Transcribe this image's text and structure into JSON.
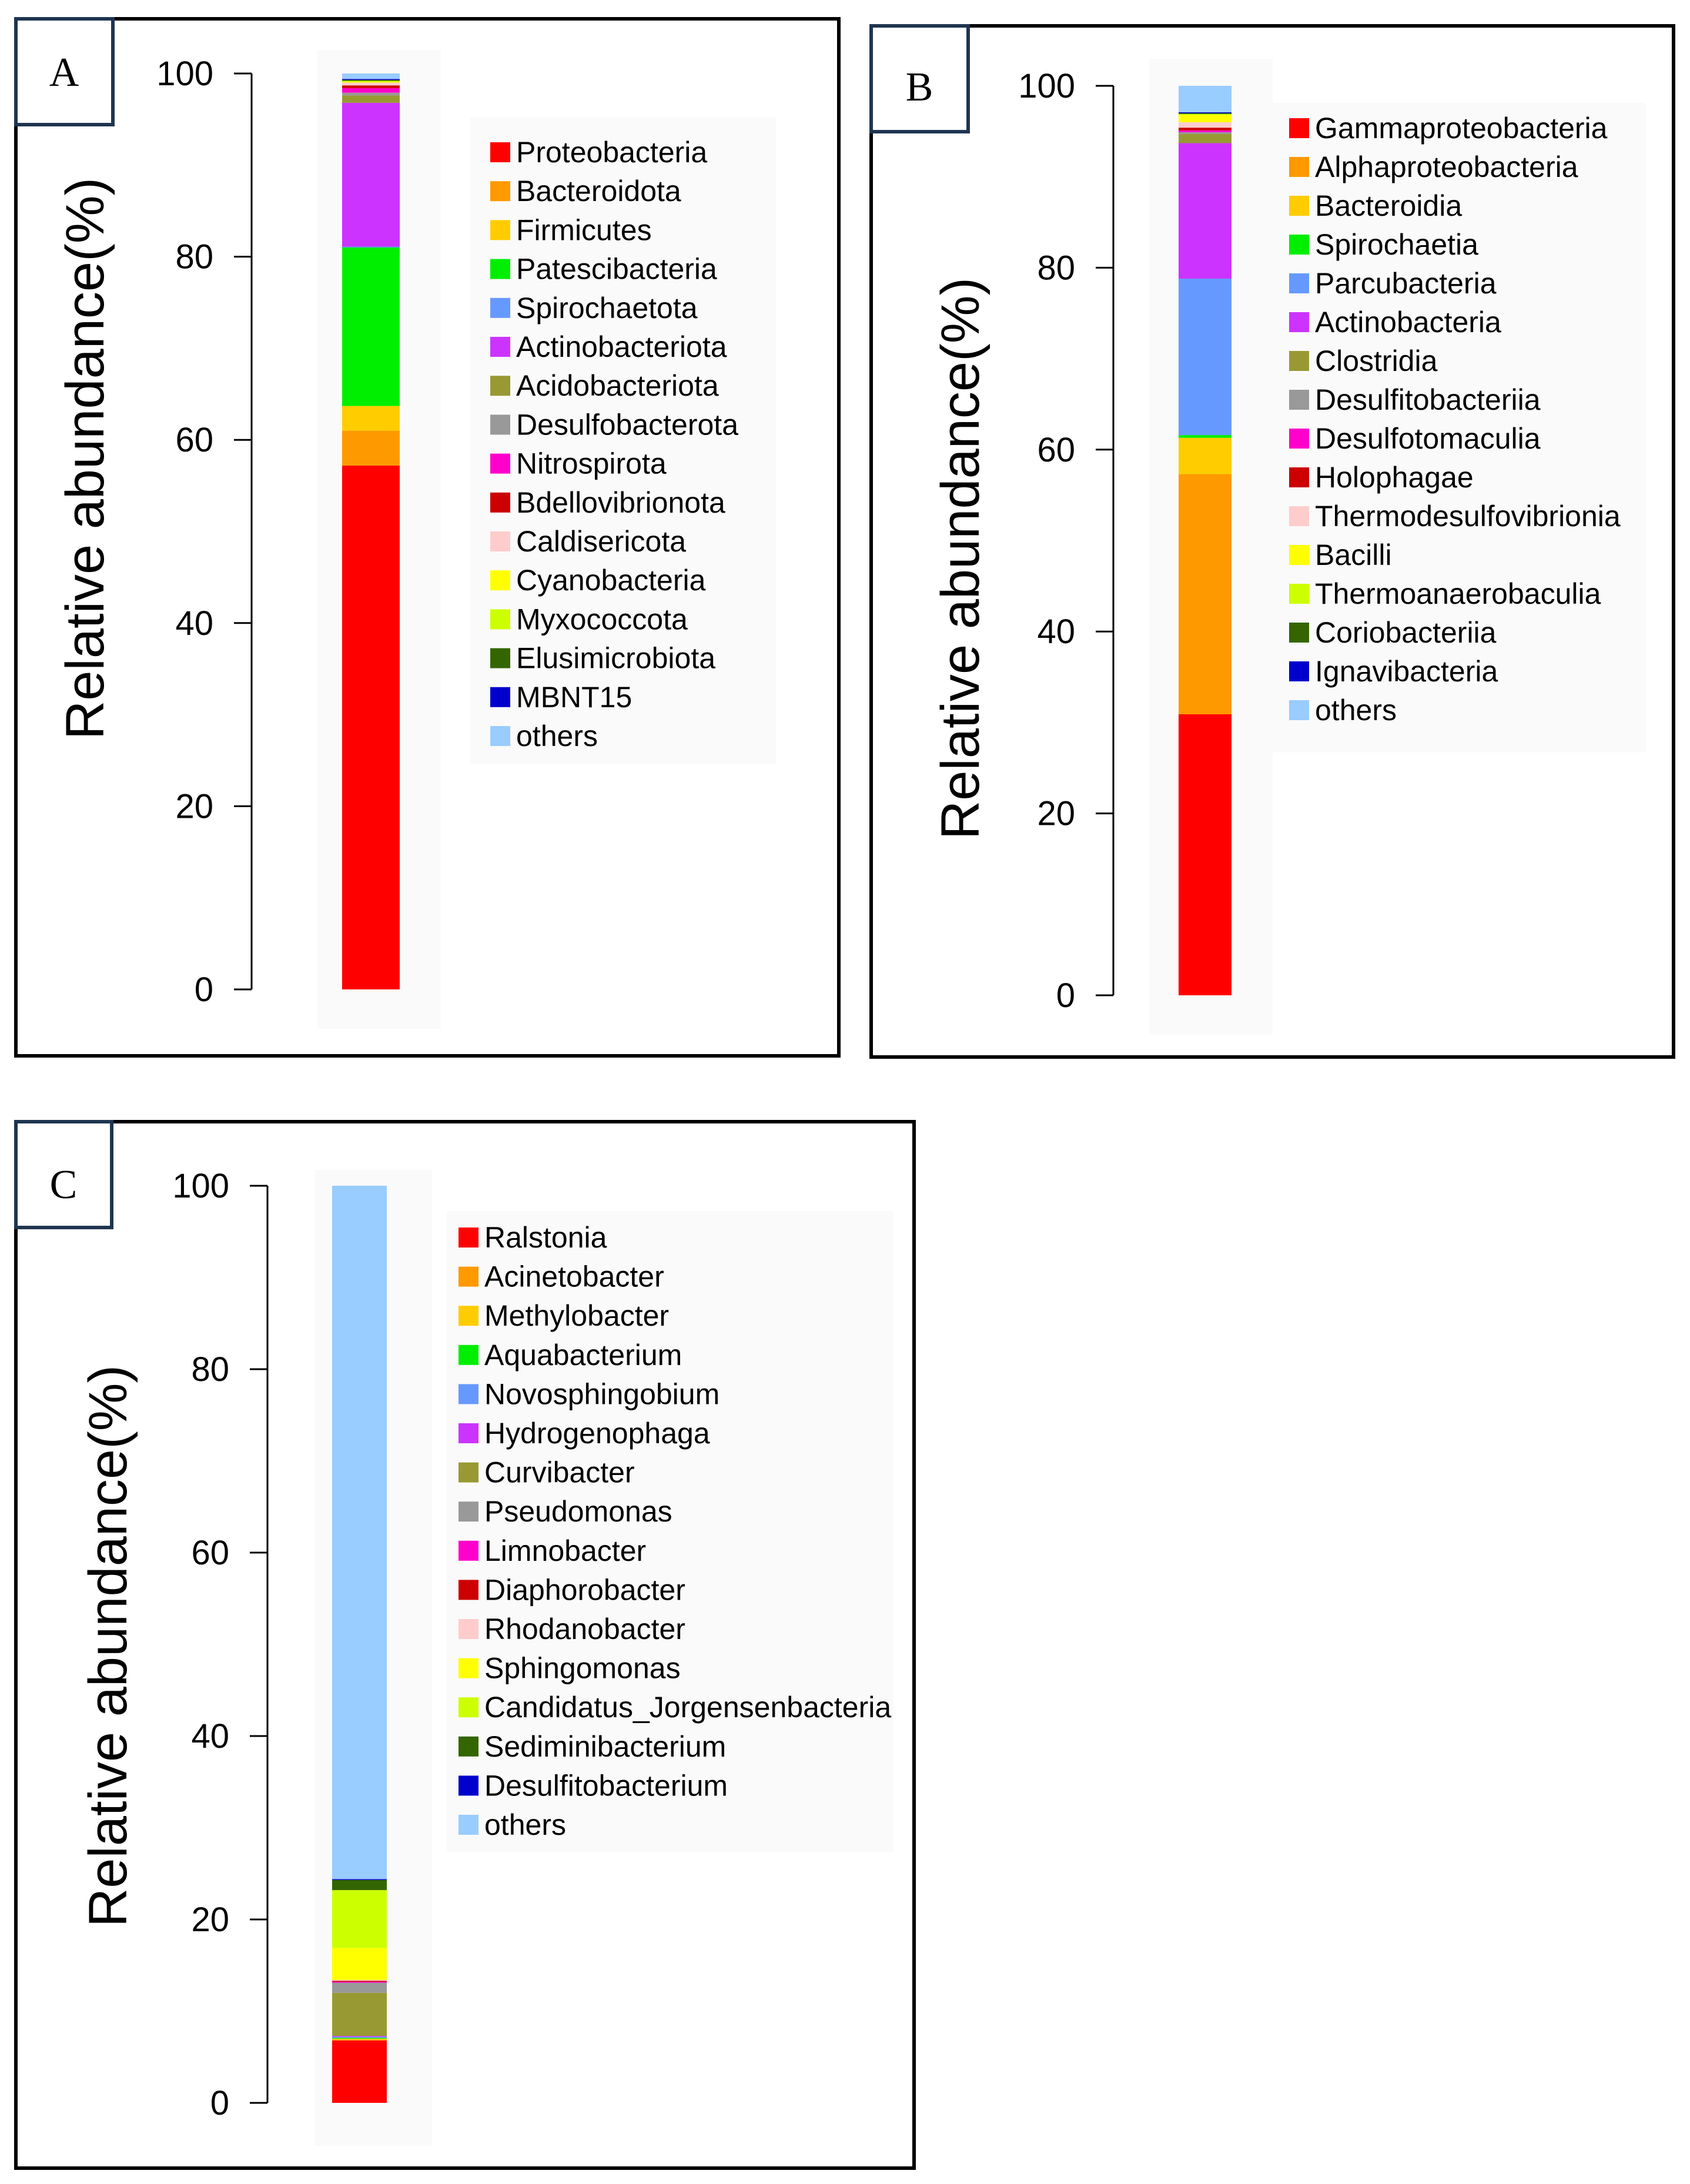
{
  "chart_data": [
    {
      "type": "bar",
      "subtype": "stacked",
      "panel_label": "A",
      "title": "",
      "xlabel": "",
      "ylabel": "Relative abundance(%)",
      "ylim": [
        0,
        100
      ],
      "yticks": [
        "0",
        "20",
        "40",
        "60",
        "80",
        "100"
      ],
      "categories": [
        ""
      ],
      "series": [
        {
          "name": "Proteobacteria",
          "color": "#ff0000",
          "values": [
            57.2
          ]
        },
        {
          "name": "Bacteroidota",
          "color": "#ff9900",
          "values": [
            3.8
          ]
        },
        {
          "name": "Firmicutes",
          "color": "#ffcc00",
          "values": [
            2.7
          ]
        },
        {
          "name": "Patescibacteria",
          "color": "#00ee00",
          "values": [
            17.3
          ]
        },
        {
          "name": "Spirochaetota",
          "color": "#6699ff",
          "values": [
            0.1
          ]
        },
        {
          "name": "Actinobacteriota",
          "color": "#cc33ff",
          "values": [
            15.7
          ]
        },
        {
          "name": "Acidobacteriota",
          "color": "#999933",
          "values": [
            0.8
          ]
        },
        {
          "name": "Desulfobacterota",
          "color": "#999999",
          "values": [
            0.3
          ]
        },
        {
          "name": "Nitrospirota",
          "color": "#ff00cc",
          "values": [
            0.5
          ]
        },
        {
          "name": "Bdellovibrionota",
          "color": "#cc0000",
          "values": [
            0.3
          ]
        },
        {
          "name": "Caldisericota",
          "color": "#ffcccc",
          "values": [
            0.3
          ]
        },
        {
          "name": "Cyanobacteria",
          "color": "#ffff00",
          "values": [
            0.1
          ]
        },
        {
          "name": "Myxococcota",
          "color": "#ccff00",
          "values": [
            0.1
          ]
        },
        {
          "name": "Elusimicrobiota",
          "color": "#336600",
          "values": [
            0.1
          ]
        },
        {
          "name": "MBNT15",
          "color": "#0000cc",
          "values": [
            0.1
          ]
        },
        {
          "name": "others",
          "color": "#99ccff",
          "values": [
            0.6
          ]
        }
      ]
    },
    {
      "type": "bar",
      "subtype": "stacked",
      "panel_label": "B",
      "title": "",
      "xlabel": "",
      "ylabel": "Relative abundance(%)",
      "ylim": [
        0,
        100
      ],
      "yticks": [
        "0",
        "20",
        "40",
        "60",
        "80",
        "100"
      ],
      "categories": [
        ""
      ],
      "series": [
        {
          "name": "Gammaproteobacteria",
          "color": "#ff0000",
          "values": [
            30.9
          ]
        },
        {
          "name": "Alphaproteobacteria",
          "color": "#ff9900",
          "values": [
            26.4
          ]
        },
        {
          "name": "Bacteroidia",
          "color": "#ffcc00",
          "values": [
            4.0
          ]
        },
        {
          "name": "Spirochaetia",
          "color": "#00ee00",
          "values": [
            0.3
          ]
        },
        {
          "name": "Parcubacteria",
          "color": "#6699ff",
          "values": [
            17.2
          ]
        },
        {
          "name": "Actinobacteria",
          "color": "#cc33ff",
          "values": [
            14.9
          ]
        },
        {
          "name": "Clostridia",
          "color": "#999933",
          "values": [
            1.0
          ]
        },
        {
          "name": "Desulfitobacteriia",
          "color": "#999999",
          "values": [
            0.2
          ]
        },
        {
          "name": "Desulfotomaculia",
          "color": "#ff00cc",
          "values": [
            0.2
          ]
        },
        {
          "name": "Holophagae",
          "color": "#cc0000",
          "values": [
            0.3
          ]
        },
        {
          "name": "Thermodesulfovibrionia",
          "color": "#ffcccc",
          "values": [
            0.6
          ]
        },
        {
          "name": "Bacilli",
          "color": "#ffff00",
          "values": [
            0.8
          ]
        },
        {
          "name": "Thermoanaerobaculia",
          "color": "#ccff00",
          "values": [
            0.1
          ]
        },
        {
          "name": "Coriobacteriia",
          "color": "#336600",
          "values": [
            0.1
          ]
        },
        {
          "name": "Ignavibacteria",
          "color": "#0000cc",
          "values": [
            0.1
          ]
        },
        {
          "name": "others",
          "color": "#99ccff",
          "values": [
            2.9
          ]
        }
      ]
    },
    {
      "type": "bar",
      "subtype": "stacked",
      "panel_label": "C",
      "title": "",
      "xlabel": "",
      "ylabel": "Relative abundance(%)",
      "ylim": [
        0,
        100
      ],
      "yticks": [
        "0",
        "20",
        "40",
        "60",
        "80",
        "100"
      ],
      "categories": [
        ""
      ],
      "series": [
        {
          "name": "Ralstonia",
          "color": "#ff0000",
          "values": [
            6.8
          ]
        },
        {
          "name": "Acinetobacter",
          "color": "#ff9900",
          "values": [
            0.1
          ]
        },
        {
          "name": "Methylobacter",
          "color": "#ffcc00",
          "values": [
            0.1
          ]
        },
        {
          "name": "Aquabacterium",
          "color": "#00ee00",
          "values": [
            0.1
          ]
        },
        {
          "name": "Novosphingobium",
          "color": "#6699ff",
          "values": [
            0.1
          ]
        },
        {
          "name": "Hydrogenophaga",
          "color": "#cc33ff",
          "values": [
            0.1
          ]
        },
        {
          "name": "Curvibacter",
          "color": "#999933",
          "values": [
            4.7
          ]
        },
        {
          "name": "Pseudomonas",
          "color": "#999999",
          "values": [
            1.1
          ]
        },
        {
          "name": "Limnobacter",
          "color": "#ff00cc",
          "values": [
            0.1
          ]
        },
        {
          "name": "Diaphorobacter",
          "color": "#cc0000",
          "values": [
            0.1
          ]
        },
        {
          "name": "Rhodanobacter",
          "color": "#ffcccc",
          "values": [
            0.1
          ]
        },
        {
          "name": "Sphingomonas",
          "color": "#ffff00",
          "values": [
            3.5
          ]
        },
        {
          "name": "Candidatus_Jorgensenbacteria",
          "color": "#ccff00",
          "values": [
            6.3
          ]
        },
        {
          "name": "Sediminibacterium",
          "color": "#336600",
          "values": [
            1.1
          ]
        },
        {
          "name": "Desulfitobacterium",
          "color": "#0000cc",
          "values": [
            0.1
          ]
        },
        {
          "name": "others",
          "color": "#99ccff",
          "values": [
            75.6
          ]
        }
      ]
    }
  ]
}
